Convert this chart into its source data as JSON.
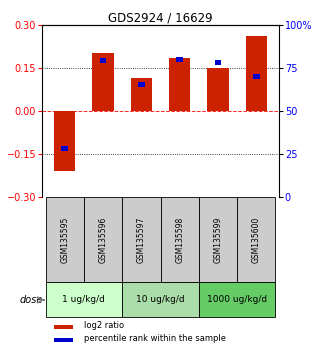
{
  "title": "GDS2924 / 16629",
  "samples": [
    "GSM135595",
    "GSM135596",
    "GSM135597",
    "GSM135598",
    "GSM135599",
    "GSM135600"
  ],
  "log2_ratio": [
    -0.21,
    0.2,
    0.115,
    0.185,
    0.148,
    0.26
  ],
  "percentile_rank": [
    28,
    79,
    65,
    80,
    78,
    70
  ],
  "dose_groups": [
    {
      "label": "1 ug/kg/d",
      "samples": [
        0,
        1
      ],
      "color": "#ccffcc"
    },
    {
      "label": "10 ug/kg/d",
      "samples": [
        2,
        3
      ],
      "color": "#aaddaa"
    },
    {
      "label": "1000 ug/kg/d",
      "samples": [
        4,
        5
      ],
      "color": "#66cc66"
    }
  ],
  "ylim": [
    -0.3,
    0.3
  ],
  "yticks_left": [
    -0.3,
    -0.15,
    0,
    0.15,
    0.3
  ],
  "hlines_dotted": [
    -0.15,
    0.15
  ],
  "hline_zero": 0,
  "bar_width": 0.55,
  "blue_bar_width": 0.18,
  "red_color": "#cc2200",
  "blue_color": "#0000cc",
  "sample_bg_color": "#cccccc",
  "legend_red": "log2 ratio",
  "legend_blue": "percentile rank within the sample"
}
